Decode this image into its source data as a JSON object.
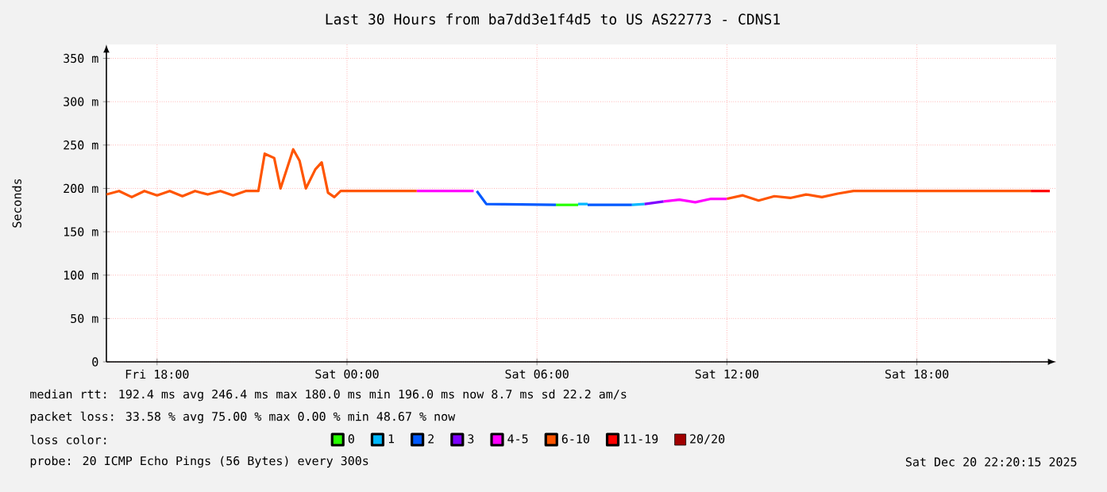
{
  "chart_data": {
    "type": "line",
    "title": "Last 30 Hours from ba7dd3e1f4d5 to US AS22773 - CDNS1",
    "ylabel": "Seconds",
    "legend_title": "loss color:",
    "xlim": [
      "2025-12-19T16:24",
      "2025-12-20T22:24"
    ],
    "xticks": [
      {
        "value": "2025-12-19T18:00",
        "label": "Fri 18:00"
      },
      {
        "value": "2025-12-20T00:00",
        "label": "Sat 00:00"
      },
      {
        "value": "2025-12-20T06:00",
        "label": "Sat 06:00"
      },
      {
        "value": "2025-12-20T12:00",
        "label": "Sat 12:00"
      },
      {
        "value": "2025-12-20T18:00",
        "label": "Sat 18:00"
      }
    ],
    "ylim": [
      0,
      366
    ],
    "yticks": [
      0,
      {
        "value": 50,
        "label": "50 m"
      },
      {
        "value": 100,
        "label": "100 m"
      },
      {
        "value": 150,
        "label": "150 m"
      },
      {
        "value": 200,
        "label": "200 m"
      },
      {
        "value": 250,
        "label": "250 m"
      },
      {
        "value": 300,
        "label": "300 m"
      },
      {
        "value": 350,
        "label": "350 m"
      }
    ],
    "grid": true,
    "legend": "bottom",
    "marker": "none",
    "line_style": "solid",
    "series": [
      {
        "name": "0",
        "color": "#26ff00",
        "x": [
          "2025-12-20T06:36",
          "2025-12-20T07:18"
        ],
        "values": [
          181,
          181
        ]
      },
      {
        "name": "1",
        "color": "#00b8ff",
        "x": [
          "2025-12-20T07:18",
          "2025-12-20T07:36",
          "2025-12-20T07:42",
          "2025-12-20T09:00",
          "2025-12-20T09:24"
        ],
        "values": [
          182,
          182,
          null,
          181,
          182
        ]
      },
      {
        "name": "2",
        "color": "#0059ff",
        "x": [
          "2025-12-20T04:06",
          "2025-12-20T04:24",
          "2025-12-20T06:36",
          "2025-12-20T06:42",
          "2025-12-20T07:36",
          "2025-12-20T09:00"
        ],
        "values": [
          197,
          182,
          181,
          null,
          181,
          181
        ]
      },
      {
        "name": "3",
        "color": "#7e00ff",
        "x": [
          "2025-12-20T09:24",
          "2025-12-20T10:00"
        ],
        "values": [
          182,
          185
        ]
      },
      {
        "name": "4-5",
        "color": "#ff00ff",
        "x": [
          "2025-12-20T02:12",
          "2025-12-20T03:12",
          "2025-12-20T04:00",
          "2025-12-20T04:06",
          "2025-12-20T10:00",
          "2025-12-20T10:30",
          "2025-12-20T11:00",
          "2025-12-20T11:30",
          "2025-12-20T12:00"
        ],
        "values": [
          197,
          197,
          197,
          null,
          185,
          187,
          184,
          188,
          188
        ]
      },
      {
        "name": "6-10",
        "color": "#ff5500",
        "x": [
          "2025-12-19T16:24",
          "2025-12-19T16:48",
          "2025-12-19T17:12",
          "2025-12-19T17:36",
          "2025-12-19T18:00",
          "2025-12-19T18:24",
          "2025-12-19T18:48",
          "2025-12-19T19:12",
          "2025-12-19T19:36",
          "2025-12-19T20:00",
          "2025-12-19T20:24",
          "2025-12-19T20:48",
          "2025-12-19T21:12",
          "2025-12-19T21:24",
          "2025-12-19T21:42",
          "2025-12-19T21:54",
          "2025-12-19T22:18",
          "2025-12-19T22:30",
          "2025-12-19T22:42",
          "2025-12-19T23:00",
          "2025-12-19T23:12",
          "2025-12-19T23:24",
          "2025-12-19T23:36",
          "2025-12-19T23:48",
          "2025-12-20T02:12",
          "2025-12-20T02:18",
          "2025-12-20T12:00",
          "2025-12-20T12:30",
          "2025-12-20T13:00",
          "2025-12-20T13:30",
          "2025-12-20T14:00",
          "2025-12-20T14:30",
          "2025-12-20T15:00",
          "2025-12-20T15:30",
          "2025-12-20T16:00",
          "2025-12-20T21:36"
        ],
        "values": [
          193,
          197,
          190,
          197,
          192,
          197,
          191,
          197,
          193,
          197,
          192,
          197,
          197,
          240,
          235,
          200,
          245,
          232,
          200,
          222,
          230,
          195,
          190,
          197,
          197,
          null,
          188,
          192,
          186,
          191,
          189,
          193,
          190,
          194,
          197,
          197
        ]
      },
      {
        "name": "11-19",
        "color": "#ff0000",
        "x": [
          "2025-12-20T21:36",
          "2025-12-20T22:12"
        ],
        "values": [
          197,
          197
        ]
      },
      {
        "name": "20/20",
        "color": "#a10000"
      }
    ],
    "annotations": [
      "median rtt: 192.4 ms avg 246.4 ms max 180.0 ms min 196.0 ms now 8.7 ms sd 22.2 am/s",
      "packet loss: 33.58 % avg 75.00 % max 0.00 % min 48.67 % now",
      "probe: 20 ICMP Echo Pings (56 Bytes) every 300s",
      "Sat Dec 20 22:20:15 2025"
    ]
  }
}
